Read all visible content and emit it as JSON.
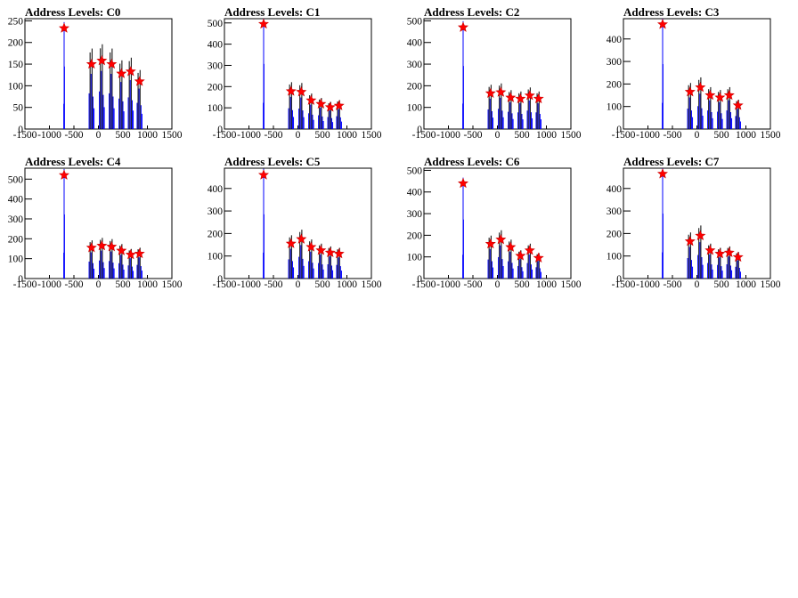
{
  "chart_data": [
    {
      "type": "histogram",
      "title": "Address Levels: C0",
      "xlim": [
        -1500,
        1500
      ],
      "ylim": [
        0,
        255
      ],
      "x_ticks": [
        -1500,
        -1000,
        -500,
        0,
        500,
        1000,
        1500
      ],
      "y_ticks": [
        0,
        50,
        100,
        150,
        200,
        250
      ],
      "peaks": [
        {
          "x": -700,
          "y": 233
        },
        {
          "x": -140,
          "y": 150
        },
        {
          "x": 70,
          "y": 158
        },
        {
          "x": 270,
          "y": 150
        },
        {
          "x": 470,
          "y": 128
        },
        {
          "x": 660,
          "y": 133
        },
        {
          "x": 840,
          "y": 110
        }
      ]
    },
    {
      "type": "histogram",
      "title": "Address Levels: C1",
      "xlim": [
        -1500,
        1500
      ],
      "ylim": [
        0,
        520
      ],
      "x_ticks": [
        -1500,
        -1000,
        -500,
        0,
        500,
        1000,
        1500
      ],
      "y_ticks": [
        0,
        100,
        200,
        300,
        400,
        500
      ],
      "peaks": [
        {
          "x": -700,
          "y": 495
        },
        {
          "x": -140,
          "y": 178
        },
        {
          "x": 70,
          "y": 175
        },
        {
          "x": 270,
          "y": 135
        },
        {
          "x": 470,
          "y": 118
        },
        {
          "x": 660,
          "y": 103
        },
        {
          "x": 840,
          "y": 110
        }
      ]
    },
    {
      "type": "histogram",
      "title": "Address Levels: C2",
      "xlim": [
        -1500,
        1500
      ],
      "ylim": [
        0,
        510
      ],
      "x_ticks": [
        -1500,
        -1000,
        -500,
        0,
        500,
        1000,
        1500
      ],
      "y_ticks": [
        0,
        100,
        200,
        300,
        400,
        500
      ],
      "peaks": [
        {
          "x": -700,
          "y": 470
        },
        {
          "x": -140,
          "y": 165
        },
        {
          "x": 70,
          "y": 170
        },
        {
          "x": 270,
          "y": 145
        },
        {
          "x": 470,
          "y": 140
        },
        {
          "x": 660,
          "y": 155
        },
        {
          "x": 840,
          "y": 140
        }
      ]
    },
    {
      "type": "histogram",
      "title": "Address Levels: C3",
      "xlim": [
        -1500,
        1500
      ],
      "ylim": [
        0,
        490
      ],
      "x_ticks": [
        -1500,
        -1000,
        -500,
        0,
        500,
        1000,
        1500
      ],
      "y_ticks": [
        0,
        100,
        200,
        300,
        400
      ],
      "peaks": [
        {
          "x": -700,
          "y": 465
        },
        {
          "x": -140,
          "y": 165
        },
        {
          "x": 70,
          "y": 185
        },
        {
          "x": 270,
          "y": 150
        },
        {
          "x": 470,
          "y": 140
        },
        {
          "x": 660,
          "y": 150
        },
        {
          "x": 840,
          "y": 105
        }
      ]
    },
    {
      "type": "histogram",
      "title": "Address Levels: C4",
      "xlim": [
        -1500,
        1500
      ],
      "ylim": [
        0,
        555
      ],
      "x_ticks": [
        -1500,
        -1000,
        -500,
        0,
        500,
        1000,
        1500
      ],
      "y_ticks": [
        0,
        100,
        200,
        300,
        400,
        500
      ],
      "peaks": [
        {
          "x": -700,
          "y": 520
        },
        {
          "x": -140,
          "y": 155
        },
        {
          "x": 70,
          "y": 165
        },
        {
          "x": 270,
          "y": 160
        },
        {
          "x": 470,
          "y": 140
        },
        {
          "x": 660,
          "y": 120
        },
        {
          "x": 840,
          "y": 125
        }
      ]
    },
    {
      "type": "histogram",
      "title": "Address Levels: C5",
      "xlim": [
        -1500,
        1500
      ],
      "ylim": [
        0,
        490
      ],
      "x_ticks": [
        -1500,
        -1000,
        -500,
        0,
        500,
        1000,
        1500
      ],
      "y_ticks": [
        0,
        100,
        200,
        300,
        400
      ],
      "peaks": [
        {
          "x": -700,
          "y": 460
        },
        {
          "x": -140,
          "y": 155
        },
        {
          "x": 70,
          "y": 175
        },
        {
          "x": 270,
          "y": 140
        },
        {
          "x": 470,
          "y": 125
        },
        {
          "x": 660,
          "y": 115
        },
        {
          "x": 840,
          "y": 110
        }
      ]
    },
    {
      "type": "histogram",
      "title": "Address Levels: C6",
      "xlim": [
        -1500,
        1500
      ],
      "ylim": [
        0,
        510
      ],
      "x_ticks": [
        -1500,
        -1000,
        -500,
        0,
        500,
        1000,
        1500
      ],
      "y_ticks": [
        0,
        100,
        200,
        300,
        400,
        500
      ],
      "peaks": [
        {
          "x": -700,
          "y": 440
        },
        {
          "x": -140,
          "y": 160
        },
        {
          "x": 70,
          "y": 180
        },
        {
          "x": 270,
          "y": 145
        },
        {
          "x": 470,
          "y": 105
        },
        {
          "x": 660,
          "y": 130
        },
        {
          "x": 840,
          "y": 95
        }
      ]
    },
    {
      "type": "histogram",
      "title": "Address Levels: C7",
      "xlim": [
        -1500,
        1500
      ],
      "ylim": [
        0,
        490
      ],
      "x_ticks": [
        -1500,
        -1000,
        -500,
        0,
        500,
        1000,
        1500
      ],
      "y_ticks": [
        0,
        100,
        200,
        300,
        400
      ],
      "peaks": [
        {
          "x": -700,
          "y": 465
        },
        {
          "x": -140,
          "y": 165
        },
        {
          "x": 70,
          "y": 190
        },
        {
          "x": 270,
          "y": 125
        },
        {
          "x": 470,
          "y": 110
        },
        {
          "x": 660,
          "y": 115
        },
        {
          "x": 840,
          "y": 95
        }
      ]
    }
  ],
  "colors": {
    "histogram_line": "#0000ff",
    "peak_marker": "#ff0000",
    "axis": "#000000"
  }
}
